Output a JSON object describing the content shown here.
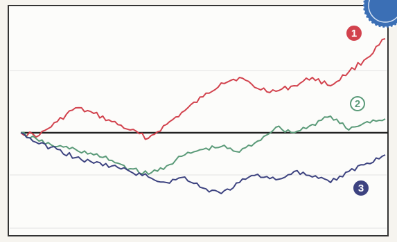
{
  "chart_data": {
    "type": "line",
    "title": "",
    "xlabel": "",
    "ylabel": "",
    "x": [
      0,
      5,
      10,
      15,
      20,
      25,
      30,
      35,
      40,
      45,
      50,
      55,
      60,
      65,
      70,
      75,
      80,
      85,
      90,
      95,
      100
    ],
    "ylim": [
      -32,
      38
    ],
    "baseline": 0,
    "grid": true,
    "series": [
      {
        "name": "1",
        "color": "#d2424d",
        "values": [
          0,
          -1,
          4,
          9,
          7,
          4,
          1,
          -2,
          3,
          8,
          13,
          18,
          20,
          16,
          15,
          17,
          20,
          17,
          22,
          27,
          34
        ]
      },
      {
        "name": "2",
        "color": "#5a9a78",
        "values": [
          0,
          -3,
          -5,
          -6,
          -8,
          -10,
          -13,
          -15,
          -12,
          -8,
          -6,
          -5,
          -7,
          -3,
          2,
          0,
          3,
          6,
          1,
          4,
          5
        ]
      },
      {
        "name": "3",
        "color": "#3d4380",
        "values": [
          0,
          -4,
          -6,
          -9,
          -11,
          -12,
          -14,
          -16,
          -18,
          -16,
          -20,
          -22,
          -18,
          -15,
          -17,
          -14,
          -16,
          -18,
          -14,
          -11,
          -8
        ]
      }
    ]
  },
  "colors": {
    "frame": "#333333",
    "plot_bg": "#fcfcfa",
    "grid": "#e2e2e2",
    "baseline": "#222222",
    "badge_fill": "#ffffff",
    "corner_badge": "#3b6fb5"
  }
}
